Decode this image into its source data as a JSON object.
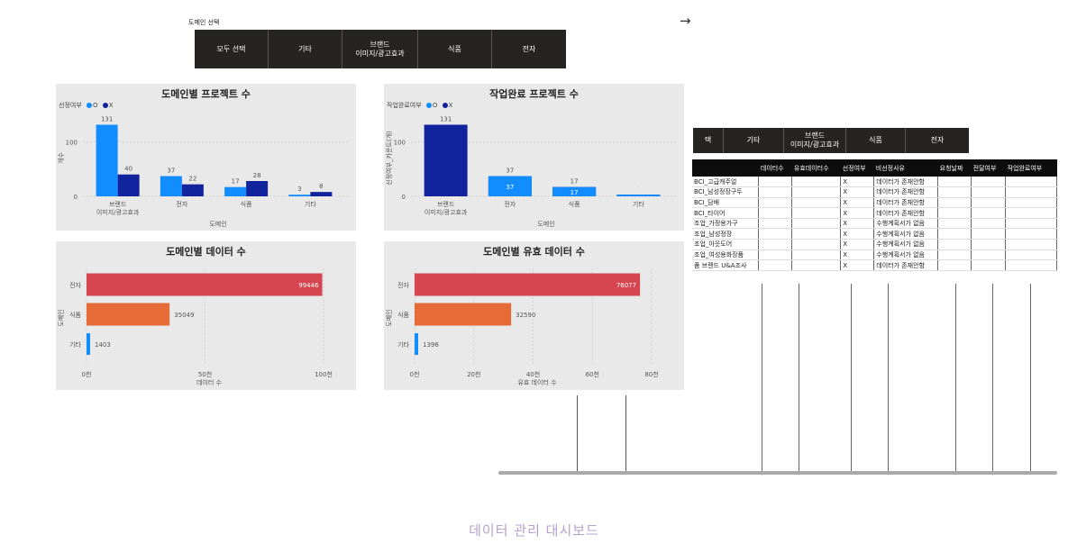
{
  "slicer": {
    "title": "도메인 선택",
    "buttons": [
      "모두 선택",
      "기타",
      "브랜드\n이미지/광고효과",
      "식품",
      "전자"
    ]
  },
  "slicer2": {
    "buttons": [
      "택",
      "기타",
      "브랜드\n이미지/광고효과",
      "식품",
      "전자"
    ]
  },
  "charts": {
    "projects": {
      "title": "도메인별 프로젝트 수",
      "legend_title": "선정여부",
      "legend": [
        "O",
        "X"
      ],
      "ylabel": "개수",
      "xlabel": "도메인"
    },
    "completed": {
      "title": "작업완료 프로젝트 수",
      "legend_title": "작업완료여부",
      "legend": [
        "O",
        "X"
      ],
      "ylabel": "선정여부_카운트(개)",
      "xlabel": "도메인"
    },
    "data": {
      "title": "도메인별 데이터 수",
      "ylabel": "도메인",
      "xlabel": "데이터 수"
    },
    "valid": {
      "title": "도메인별 유효 데이터 수",
      "ylabel": "도메인",
      "xlabel": "유효 데이터 수"
    }
  },
  "chart_data": [
    {
      "type": "bar",
      "title": "도메인별 프로젝트 수",
      "categories": [
        "브랜드\n이미지/광고효과",
        "전자",
        "식품",
        "기타"
      ],
      "series": [
        {
          "name": "O",
          "values": [
            131,
            37,
            17,
            3
          ]
        },
        {
          "name": "X",
          "values": [
            40,
            22,
            28,
            8
          ]
        }
      ],
      "xlabel": "도메인",
      "ylabel": "개수",
      "yticks": [
        0,
        100
      ],
      "ylim": [
        0,
        140
      ],
      "colors": [
        "#118dff",
        "#12239e"
      ],
      "legend": "top-left",
      "grid": true
    },
    {
      "type": "bar",
      "title": "작업완료 프로젝트 수",
      "categories": [
        "브랜드\n이미지/광고효과",
        "전자",
        "식품",
        "기타"
      ],
      "series": [
        {
          "name": "X",
          "values": [
            131,
            37,
            17,
            3
          ]
        },
        {
          "name": "O",
          "values": [
            0,
            37,
            17,
            3
          ]
        }
      ],
      "xlabel": "도메인",
      "ylabel": "선정여부_카운트(개)",
      "yticks": [
        0,
        100
      ],
      "ylim": [
        0,
        140
      ],
      "colors": [
        "#12239e",
        "#118dff"
      ],
      "legend": "top-left",
      "grid": true
    },
    {
      "type": "bar",
      "orientation": "horizontal",
      "title": "도메인별 데이터 수",
      "categories": [
        "전자",
        "식품",
        "기타"
      ],
      "values": [
        99446,
        35049,
        1403
      ],
      "value_labels": [
        "99446",
        "35049",
        "1403"
      ],
      "xticks": [
        0,
        50000,
        100000
      ],
      "xtick_labels": [
        "0천",
        "50천",
        "100천"
      ],
      "xlim": [
        0,
        100000
      ],
      "xlabel": "데이터 수",
      "ylabel": "도메인",
      "colors": [
        "#d64550",
        "#e66c37",
        "#118dff"
      ]
    },
    {
      "type": "bar",
      "orientation": "horizontal",
      "title": "도메인별 유효 데이터 수",
      "categories": [
        "전자",
        "식품",
        "기타"
      ],
      "values": [
        76077,
        32590,
        1396
      ],
      "value_labels": [
        "76077",
        "32590",
        "1396"
      ],
      "xticks": [
        0,
        20000,
        40000,
        60000,
        80000
      ],
      "xtick_labels": [
        "0천",
        "20천",
        "40천",
        "60천",
        "80천"
      ],
      "xlim": [
        0,
        80000
      ],
      "xlabel": "유효 데이터 수",
      "ylabel": "도메인",
      "colors": [
        "#d64550",
        "#e66c37",
        "#118dff"
      ]
    }
  ],
  "table": {
    "columns": [
      "",
      "데이터수",
      "유효데이터수",
      "선정여부",
      "비선정사유",
      "요청날짜",
      "전달여부",
      "작업완료여부"
    ],
    "rows": [
      [
        "BCI_고급캐주얼",
        "",
        "",
        "X",
        "데이터가 존재안함",
        "",
        "",
        ""
      ],
      [
        "BCI_남성정장구두",
        "",
        "",
        "X",
        "데이터가 존재안함",
        "",
        "",
        ""
      ],
      [
        "BCI_담배",
        "",
        "",
        "X",
        "데이터가 존재안함",
        "",
        "",
        ""
      ],
      [
        "BCI_타이어",
        "",
        "",
        "X",
        "데이터가 존재안함",
        "",
        "",
        ""
      ],
      [
        "조업_가정용가구",
        "",
        "",
        "X",
        "수행계획서가 없음",
        "",
        "",
        ""
      ],
      [
        "조업_남성정장",
        "",
        "",
        "X",
        "수행계획서가 없음",
        "",
        "",
        ""
      ],
      [
        "조업_아웃도어",
        "",
        "",
        "X",
        "수행계획서가 없음",
        "",
        "",
        ""
      ],
      [
        "조업_여성용화장품",
        "",
        "",
        "X",
        "수행계획서가 없음",
        "",
        "",
        ""
      ],
      [
        "품 브랜드 U&A조사",
        "",
        "",
        "X",
        "데이터가 존재안함",
        "",
        "",
        ""
      ]
    ]
  },
  "footer": "데이터 관리 대시보드",
  "colors": {
    "accent_light": "#118dff",
    "accent_dark": "#12239e",
    "red": "#d64550",
    "orange": "#e66c37",
    "panel_bg": "#e9e9e9",
    "slicer_bg": "#252423"
  }
}
